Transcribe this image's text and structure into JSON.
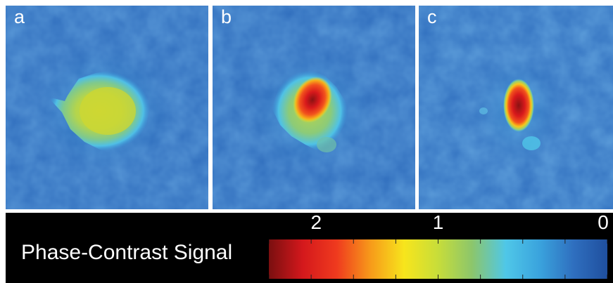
{
  "panels": [
    {
      "label": "a"
    },
    {
      "label": "b"
    },
    {
      "label": "c"
    }
  ],
  "colorbar": {
    "title": "Phase-Contrast Signal",
    "ticks": [
      {
        "label": "2",
        "value": 2
      },
      {
        "label": "1",
        "value": 1
      },
      {
        "label": "0",
        "value": 0
      }
    ],
    "range": [
      2,
      0
    ],
    "colormap": [
      "#7a0f10",
      "#d4181c",
      "#ef3a1e",
      "#f79a1a",
      "#f7e51c",
      "#c7dd3a",
      "#8cc66b",
      "#4fc7e8",
      "#3aa3dd",
      "#2f6fbf",
      "#1f4f9e"
    ]
  },
  "colors": {
    "background": "#2f6fbf",
    "strip": "#000000",
    "text": "#ffffff"
  }
}
